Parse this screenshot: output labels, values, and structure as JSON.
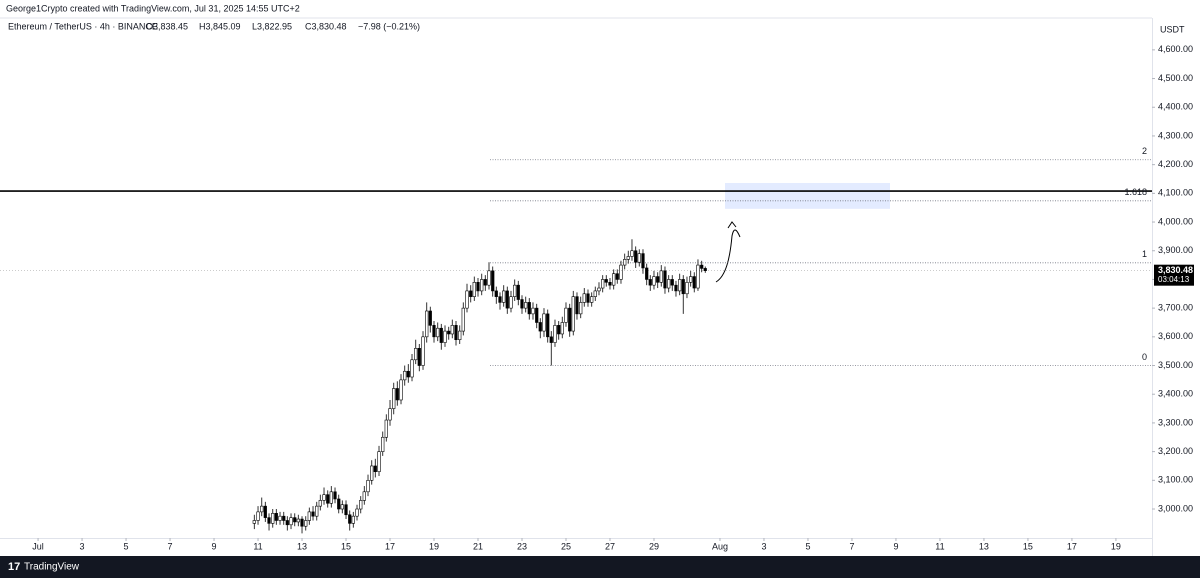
{
  "header": {
    "credit": "George1Crypto created with TradingView.com, Jul 31, 2025 14:55 UTC+2"
  },
  "footer": {
    "brand": "TradingView"
  },
  "chart_data": {
    "type": "candlestick",
    "legend": {
      "symbol": "Ethereum / TetherUS · 4h · BINANCE",
      "open": "O3,838.45",
      "high": "H3,845.09",
      "low": "L3,822.95",
      "close": "C3,830.48",
      "change": "−7.98 (−0.21%)"
    },
    "y_unit": "USDT",
    "last_price_label": "3,830.48",
    "countdown": "03:04:13",
    "up_color": "#ffffff",
    "down_color": "#000000",
    "border_color": "#000000",
    "xlim": [
      -0.73,
      51.64
    ],
    "xticks": [
      {
        "value": 1,
        "label": "Jul"
      },
      3,
      5,
      7,
      9,
      11,
      13,
      15,
      17,
      19,
      21,
      23,
      25,
      27,
      29,
      {
        "value": 32,
        "label": "Aug"
      },
      {
        "value": 34,
        "label": "3"
      },
      {
        "value": 36,
        "label": "5"
      },
      {
        "value": 38,
        "label": "7"
      },
      {
        "value": 40,
        "label": "9"
      },
      {
        "value": 42,
        "label": "11"
      },
      {
        "value": 44,
        "label": "13"
      },
      {
        "value": 46,
        "label": "15"
      },
      {
        "value": 48,
        "label": "17"
      },
      {
        "value": 50,
        "label": "19"
      }
    ],
    "ylim": [
      2899,
      4711
    ],
    "yticks": [
      {
        "value": 3000,
        "label": "3,000.00"
      },
      {
        "value": 3100,
        "label": "3,100.00"
      },
      {
        "value": 3200,
        "label": "3,200.00"
      },
      {
        "value": 3300,
        "label": "3,300.00"
      },
      {
        "value": 3400,
        "label": "3,400.00"
      },
      {
        "value": 3500,
        "label": "3,500.00"
      },
      {
        "value": 3600,
        "label": "3,600.00"
      },
      {
        "value": 3700,
        "label": "3,700.00"
      },
      {
        "value": 3800,
        "label": "3,800.00"
      },
      {
        "value": 3900,
        "label": "3,900.00"
      },
      {
        "value": 4000,
        "label": "4,000.00"
      },
      {
        "value": 4100,
        "label": "4,100.00"
      },
      {
        "value": 4200,
        "label": "4,200.00"
      },
      {
        "value": 4300,
        "label": "4,300.00"
      },
      {
        "value": 4400,
        "label": "4,400.00"
      },
      {
        "value": 4500,
        "label": "4,500.00"
      },
      {
        "value": 4600,
        "label": "4,600.00"
      }
    ],
    "grid": false,
    "horizontal_line": 4108,
    "target_zone": [
      4046,
      4136
    ],
    "fib_levels": [
      {
        "ratio": "2",
        "price": 4217
      },
      {
        "ratio": "1.618",
        "price": 4074
      },
      {
        "ratio": "1",
        "price": 3858
      },
      {
        "ratio": "0",
        "price": 3500
      }
    ],
    "x": [
      10.83,
      11,
      11.17,
      11.33,
      11.5,
      11.67,
      11.83,
      12,
      12.17,
      12.33,
      12.5,
      12.67,
      12.83,
      13,
      13.17,
      13.33,
      13.5,
      13.67,
      13.83,
      14,
      14.17,
      14.33,
      14.5,
      14.67,
      14.83,
      15,
      15.17,
      15.33,
      15.5,
      15.67,
      15.83,
      16,
      16.17,
      16.33,
      16.5,
      16.67,
      16.83,
      17,
      17.17,
      17.33,
      17.5,
      17.67,
      17.83,
      18,
      18.17,
      18.33,
      18.5,
      18.67,
      18.83,
      19,
      19.17,
      19.33,
      19.5,
      19.67,
      19.83,
      20,
      20.17,
      20.33,
      20.5,
      20.67,
      20.83,
      21,
      21.17,
      21.33,
      21.5,
      21.67,
      21.83,
      22,
      22.17,
      22.33,
      22.5,
      22.67,
      22.83,
      23,
      23.17,
      23.33,
      23.5,
      23.67,
      23.83,
      24,
      24.17,
      24.33,
      24.5,
      24.67,
      24.83,
      25,
      25.17,
      25.33,
      25.5,
      25.67,
      25.83,
      26,
      26.17,
      26.33,
      26.5,
      26.67,
      26.83,
      27,
      27.17,
      27.33,
      27.5,
      27.67,
      27.83,
      28,
      28.17,
      28.33,
      28.5,
      28.67,
      28.83,
      29,
      29.17,
      29.33,
      29.5,
      29.67,
      29.83,
      30,
      30.17,
      30.33,
      30.5,
      30.67,
      30.83,
      31,
      31.17,
      31.33
    ],
    "open": [
      2950,
      2960,
      2990,
      3010,
      2970,
      2950,
      2985,
      2960,
      2975,
      2960,
      2945,
      2970,
      2955,
      2965,
      2940,
      2960,
      2990,
      2975,
      3010,
      3030,
      3050,
      3020,
      3060,
      3035,
      3000,
      3015,
      2980,
      2950,
      2975,
      3000,
      3030,
      3060,
      3100,
      3150,
      3130,
      3200,
      3250,
      3310,
      3350,
      3420,
      3380,
      3450,
      3480,
      3460,
      3520,
      3560,
      3500,
      3600,
      3690,
      3640,
      3600,
      3630,
      3580,
      3620,
      3610,
      3640,
      3590,
      3620,
      3700,
      3760,
      3740,
      3790,
      3760,
      3800,
      3780,
      3830,
      3760,
      3740,
      3720,
      3760,
      3700,
      3740,
      3780,
      3730,
      3700,
      3720,
      3680,
      3700,
      3650,
      3620,
      3680,
      3600,
      3580,
      3640,
      3610,
      3650,
      3700,
      3620,
      3740,
      3680,
      3720,
      3750,
      3720,
      3740,
      3760,
      3770,
      3800,
      3790,
      3780,
      3820,
      3800,
      3850,
      3870,
      3880,
      3900,
      3860,
      3890,
      3840,
      3800,
      3780,
      3810,
      3790,
      3830,
      3770,
      3800,
      3780,
      3760,
      3800,
      3750,
      3790,
      3810,
      3770,
      3850,
      3838.45
    ],
    "high": [
      2980,
      3010,
      3040,
      3025,
      2985,
      3000,
      3000,
      2990,
      2990,
      2975,
      2985,
      2985,
      2980,
      2975,
      2975,
      3005,
      3010,
      3025,
      3050,
      3075,
      3065,
      3080,
      3075,
      3050,
      3030,
      3030,
      2995,
      2990,
      3015,
      3045,
      3080,
      3120,
      3170,
      3175,
      3220,
      3270,
      3330,
      3380,
      3440,
      3445,
      3470,
      3500,
      3505,
      3540,
      3590,
      3575,
      3620,
      3720,
      3705,
      3655,
      3650,
      3645,
      3640,
      3635,
      3660,
      3655,
      3640,
      3720,
      3785,
      3780,
      3810,
      3805,
      3820,
      3815,
      3860,
      3845,
      3775,
      3755,
      3780,
      3775,
      3760,
      3800,
      3795,
      3745,
      3740,
      3735,
      3720,
      3715,
      3665,
      3700,
      3695,
      3620,
      3660,
      3655,
      3670,
      3720,
      3715,
      3760,
      3755,
      3740,
      3770,
      3765,
      3755,
      3775,
      3790,
      3815,
      3815,
      3805,
      3835,
      3835,
      3865,
      3890,
      3900,
      3940,
      3915,
      3905,
      3905,
      3855,
      3815,
      3830,
      3825,
      3850,
      3845,
      3815,
      3815,
      3795,
      3820,
      3815,
      3810,
      3830,
      3825,
      3870,
      3865,
      3845.09
    ],
    "low": [
      2930,
      2945,
      2975,
      2955,
      2925,
      2935,
      2945,
      2945,
      2945,
      2925,
      2930,
      2940,
      2940,
      2915,
      2925,
      2945,
      2960,
      2960,
      2995,
      3015,
      3005,
      3005,
      3020,
      2985,
      2985,
      2965,
      2925,
      2935,
      2960,
      2985,
      3015,
      3045,
      3085,
      3110,
      3115,
      3185,
      3235,
      3290,
      3330,
      3360,
      3365,
      3430,
      3440,
      3445,
      3505,
      3480,
      3485,
      3580,
      3615,
      3580,
      3585,
      3555,
      3565,
      3590,
      3595,
      3570,
      3575,
      3605,
      3685,
      3720,
      3725,
      3740,
      3745,
      3760,
      3765,
      3740,
      3715,
      3695,
      3705,
      3680,
      3685,
      3725,
      3710,
      3680,
      3685,
      3660,
      3660,
      3630,
      3595,
      3600,
      3580,
      3500,
      3565,
      3590,
      3595,
      3635,
      3600,
      3605,
      3660,
      3665,
      3705,
      3705,
      3705,
      3725,
      3745,
      3755,
      3775,
      3765,
      3765,
      3785,
      3785,
      3835,
      3855,
      3865,
      3840,
      3845,
      3820,
      3780,
      3760,
      3765,
      3770,
      3775,
      3750,
      3755,
      3760,
      3740,
      3745,
      3680,
      3735,
      3775,
      3755,
      3760,
      3825,
      3822.95
    ],
    "close": [
      2960,
      2990,
      3010,
      2970,
      2950,
      2985,
      2960,
      2975,
      2960,
      2945,
      2970,
      2955,
      2965,
      2940,
      2960,
      2990,
      2975,
      3010,
      3030,
      3050,
      3020,
      3060,
      3035,
      3000,
      3015,
      2980,
      2950,
      2975,
      3000,
      3030,
      3060,
      3100,
      3150,
      3130,
      3200,
      3250,
      3310,
      3350,
      3420,
      3380,
      3450,
      3480,
      3460,
      3520,
      3560,
      3500,
      3600,
      3690,
      3640,
      3600,
      3630,
      3580,
      3620,
      3610,
      3640,
      3590,
      3620,
      3700,
      3760,
      3740,
      3790,
      3760,
      3800,
      3780,
      3830,
      3760,
      3740,
      3720,
      3760,
      3700,
      3740,
      3780,
      3730,
      3700,
      3720,
      3680,
      3700,
      3650,
      3620,
      3680,
      3600,
      3580,
      3640,
      3610,
      3650,
      3700,
      3620,
      3740,
      3680,
      3720,
      3750,
      3720,
      3740,
      3760,
      3770,
      3800,
      3790,
      3780,
      3820,
      3800,
      3850,
      3870,
      3880,
      3900,
      3860,
      3890,
      3840,
      3800,
      3780,
      3810,
      3790,
      3830,
      3770,
      3800,
      3780,
      3760,
      3800,
      3750,
      3790,
      3810,
      3770,
      3850,
      3838.45,
      3830.48
    ]
  }
}
